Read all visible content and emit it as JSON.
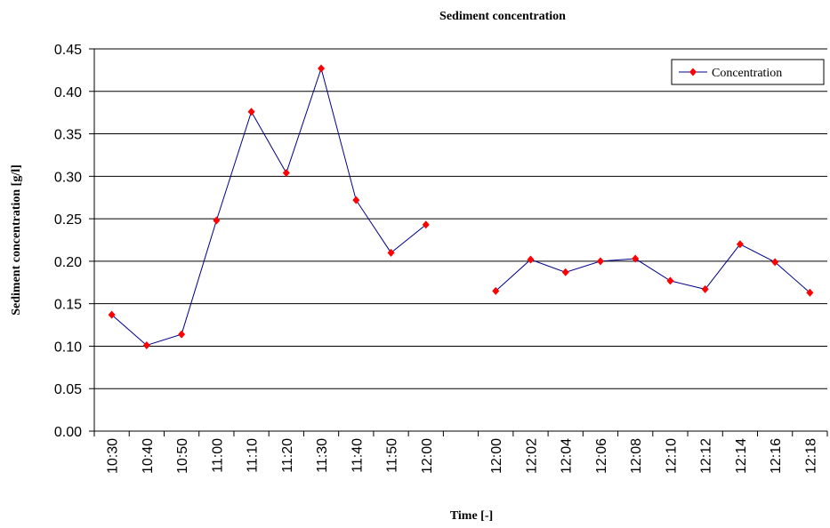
{
  "chart_data": {
    "type": "line",
    "title": "Sediment concentration",
    "x_label": "Time [-]",
    "y_label": "Sediment concentration [g/l]",
    "categories": [
      "10:30",
      "10:40",
      "10:50",
      "11:00",
      "11:10",
      "11:20",
      "11:30",
      "11:40",
      "11:50",
      "12:00",
      null,
      "12:00",
      "12:02",
      "12:04",
      "12:06",
      "12:08",
      "12:10",
      "12:12",
      "12:14",
      "12:16",
      "12:18"
    ],
    "series": [
      {
        "name": "Concentration",
        "color": "#00008b",
        "marker_color": "#ff0000",
        "values": [
          0.137,
          0.101,
          0.114,
          0.248,
          0.376,
          0.304,
          0.427,
          0.272,
          0.21,
          0.243,
          null,
          0.165,
          0.202,
          0.187,
          0.2,
          0.203,
          0.177,
          0.167,
          0.22,
          0.199,
          0.163
        ]
      }
    ],
    "ylim": [
      0,
      0.45
    ],
    "yticks": [
      {
        "value": 0,
        "label": "0.00"
      },
      0.05,
      {
        "value": 0.1,
        "label": "0.10"
      },
      0.15,
      {
        "value": 0.2,
        "label": "0.20"
      },
      0.25,
      {
        "value": 0.3,
        "label": "0.30"
      },
      0.35,
      {
        "value": 0.4,
        "label": "0.40"
      },
      0.45
    ],
    "grid": true,
    "legend": "top-right"
  }
}
